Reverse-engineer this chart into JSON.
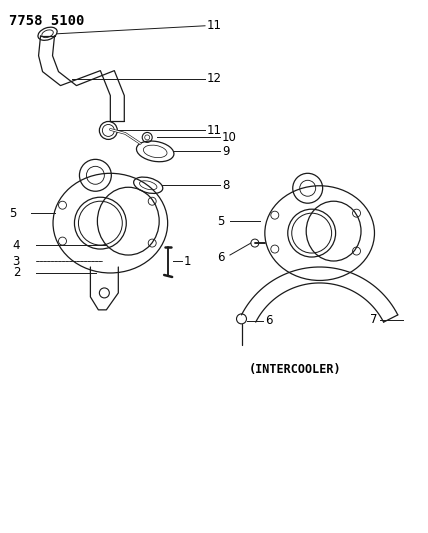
{
  "title": "7758 5100",
  "intercooler_label": "(INTERCOOLER)",
  "bg_color": "#ffffff",
  "line_color": "#1a1a1a",
  "figsize": [
    4.28,
    5.33
  ],
  "dpi": 100
}
